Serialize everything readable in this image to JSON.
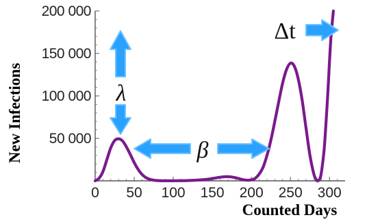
{
  "chart_data": {
    "type": "line",
    "xlabel": "Counted Days",
    "ylabel": "New Infections",
    "xlim": [
      0,
      320
    ],
    "ylim": [
      0,
      200000
    ],
    "x_ticks": [
      0,
      50,
      100,
      150,
      200,
      250,
      300
    ],
    "y_ticks": [
      50000,
      100000,
      150000,
      200000
    ],
    "x_tick_labels": [
      "0",
      "50",
      "100",
      "150",
      "200",
      "250",
      "300"
    ],
    "y_tick_labels": [
      "50 000",
      "100 000",
      "150 000",
      "200 000"
    ],
    "grid": false,
    "series": [
      {
        "color": "#7a1a8c",
        "x": [
          0,
          5,
          10,
          15,
          20,
          25,
          30,
          35,
          40,
          45,
          50,
          55,
          60,
          65,
          70,
          75,
          80,
          90,
          100,
          110,
          120,
          130,
          140,
          150,
          155,
          160,
          165,
          170,
          175,
          180,
          185,
          190,
          195,
          200,
          205,
          210,
          215,
          220,
          225,
          230,
          235,
          240,
          245,
          250,
          255,
          260,
          265,
          270,
          275,
          280,
          283,
          285,
          288,
          290,
          293,
          295,
          298,
          300,
          302,
          305
        ],
        "y": [
          0,
          3000,
          11000,
          25000,
          39000,
          47500,
          49500,
          47000,
          40000,
          31000,
          21500,
          13500,
          7500,
          3800,
          1800,
          800,
          300,
          100,
          100,
          200,
          400,
          800,
          1500,
          2700,
          3500,
          4300,
          4800,
          4900,
          4500,
          3600,
          2400,
          1300,
          700,
          1200,
          3000,
          8000,
          16000,
          30000,
          48000,
          70000,
          93000,
          115000,
          131000,
          138500,
          135000,
          120000,
          95000,
          62000,
          30000,
          8000,
          1500,
          0,
          3000,
          12000,
          35000,
          60000,
          105000,
          140000,
          170000,
          200000
        ]
      }
    ],
    "annotations": [
      {
        "text": "λ",
        "meaning": "peak height"
      },
      {
        "text": "β",
        "meaning": "spacing between waves"
      },
      {
        "text": "Δt",
        "meaning": "final segment"
      }
    ]
  },
  "colors": {
    "curve": "#7a1a8c",
    "arrow_fill": "#2aa1ff",
    "arrow_stroke": "#6fc2ff"
  }
}
